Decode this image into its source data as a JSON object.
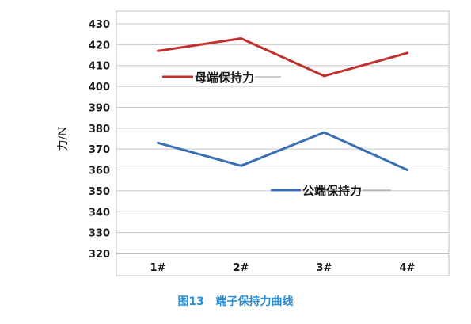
{
  "chart_data": {
    "type": "line",
    "categories": [
      "1#",
      "2#",
      "3#",
      "4#"
    ],
    "series": [
      {
        "name": "母端保持力",
        "values": [
          417,
          423,
          405,
          416
        ],
        "color": "#c0312d"
      },
      {
        "name": "公端保持力",
        "values": [
          373,
          362,
          378,
          360
        ],
        "color": "#3a6fb4"
      }
    ],
    "ylabel": "力/N",
    "xlabel": "",
    "ylim": [
      320,
      430
    ],
    "yticks": [
      320,
      330,
      340,
      350,
      360,
      370,
      380,
      390,
      400,
      410,
      420,
      430
    ],
    "grid": true,
    "legend": "inline labels near each series"
  },
  "caption": "图13   端子保持力曲线"
}
